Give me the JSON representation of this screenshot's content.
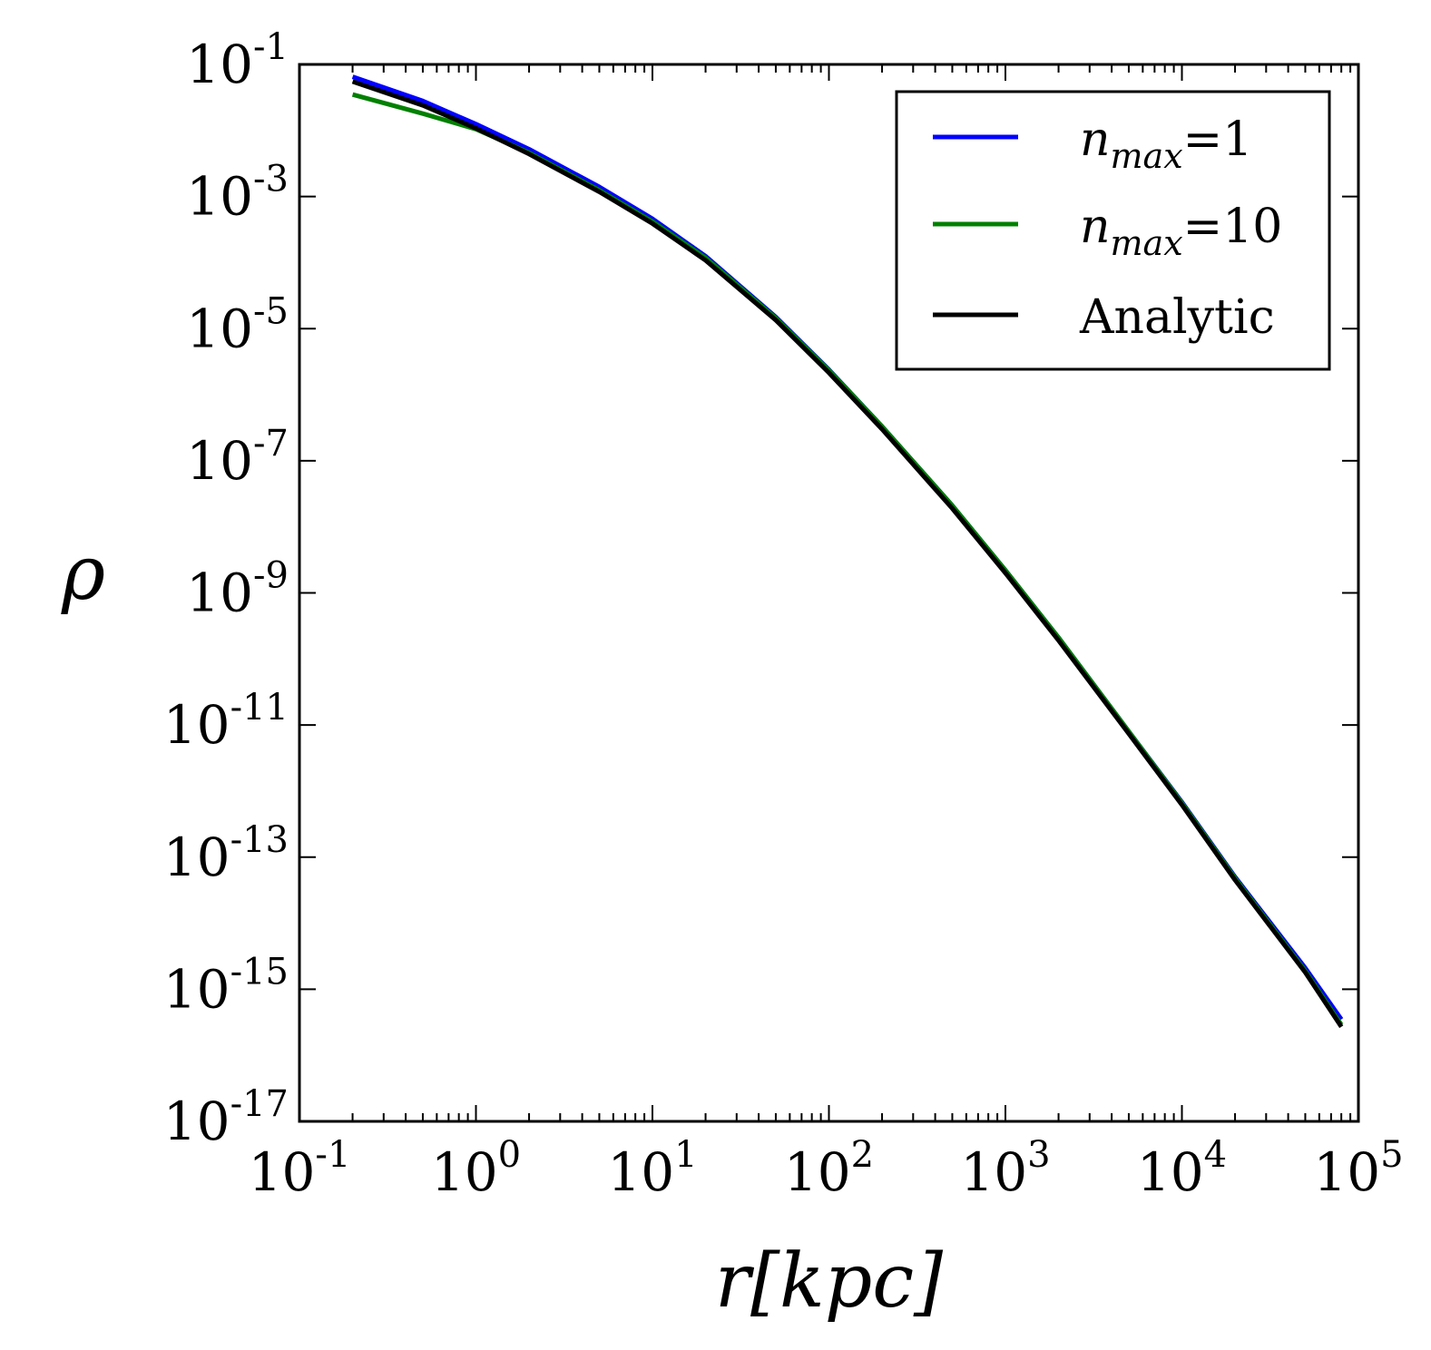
{
  "chart_data": {
    "type": "line",
    "title": "",
    "xlabel": "r[kpc]",
    "ylabel": "ρ",
    "xscale": "log",
    "yscale": "log",
    "xlim": [
      0.1,
      100000
    ],
    "ylim": [
      1e-17,
      0.1
    ],
    "grid": false,
    "legend_position": "top-right",
    "x_ticks": [
      {
        "base": "10",
        "exp": "-1"
      },
      {
        "base": "10",
        "exp": "0"
      },
      {
        "base": "10",
        "exp": "1"
      },
      {
        "base": "10",
        "exp": "2"
      },
      {
        "base": "10",
        "exp": "3"
      },
      {
        "base": "10",
        "exp": "4"
      },
      {
        "base": "10",
        "exp": "5"
      }
    ],
    "y_ticks": [
      {
        "base": "10",
        "exp": "-1"
      },
      {
        "base": "10",
        "exp": "-3"
      },
      {
        "base": "10",
        "exp": "-5"
      },
      {
        "base": "10",
        "exp": "-7"
      },
      {
        "base": "10",
        "exp": "-9"
      },
      {
        "base": "10",
        "exp": "-11"
      },
      {
        "base": "10",
        "exp": "-13"
      },
      {
        "base": "10",
        "exp": "-15"
      },
      {
        "base": "10",
        "exp": "-17"
      }
    ],
    "x": [
      0.2,
      0.5,
      1,
      2,
      5,
      10,
      20,
      50,
      100,
      200,
      500,
      1000,
      2000,
      5000,
      10000,
      20000,
      50000,
      80000
    ],
    "series": [
      {
        "name": "n_max=1",
        "label_base": "n",
        "label_sub": "max",
        "label_rest": "=1",
        "color": "#0000ff",
        "values": [
          0.065,
          0.028,
          0.0125,
          0.0052,
          0.0014,
          0.00046,
          0.000125,
          1.5e-05,
          2.4e-06,
          3.3e-07,
          2.1e-08,
          2.2e-09,
          2.1e-10,
          8e-12,
          6.8e-13,
          5e-14,
          2.1e-15,
          3.5e-16
        ]
      },
      {
        "name": "n_max=10",
        "label_base": "n",
        "label_sub": "max",
        "label_rest": "=10",
        "color": "#008000",
        "values": [
          0.035,
          0.018,
          0.0105,
          0.0046,
          0.00125,
          0.00042,
          0.000118,
          1.45e-05,
          2.35e-06,
          3.3e-07,
          2.1e-08,
          2.2e-09,
          2.1e-10,
          8e-12,
          6.6e-13,
          4.8e-14,
          1.9e-15,
          2.9e-16
        ]
      },
      {
        "name": "Analytic",
        "label_base": "Analytic",
        "label_sub": "",
        "label_rest": "",
        "color": "#000000",
        "values": [
          0.055,
          0.024,
          0.0108,
          0.0044,
          0.00118,
          0.00039,
          0.000108,
          1.35e-05,
          2.15e-06,
          3e-07,
          1.9e-08,
          2e-09,
          1.9e-10,
          7.4e-12,
          6.2e-13,
          4.5e-14,
          1.8e-15,
          2.7e-16
        ]
      }
    ]
  }
}
